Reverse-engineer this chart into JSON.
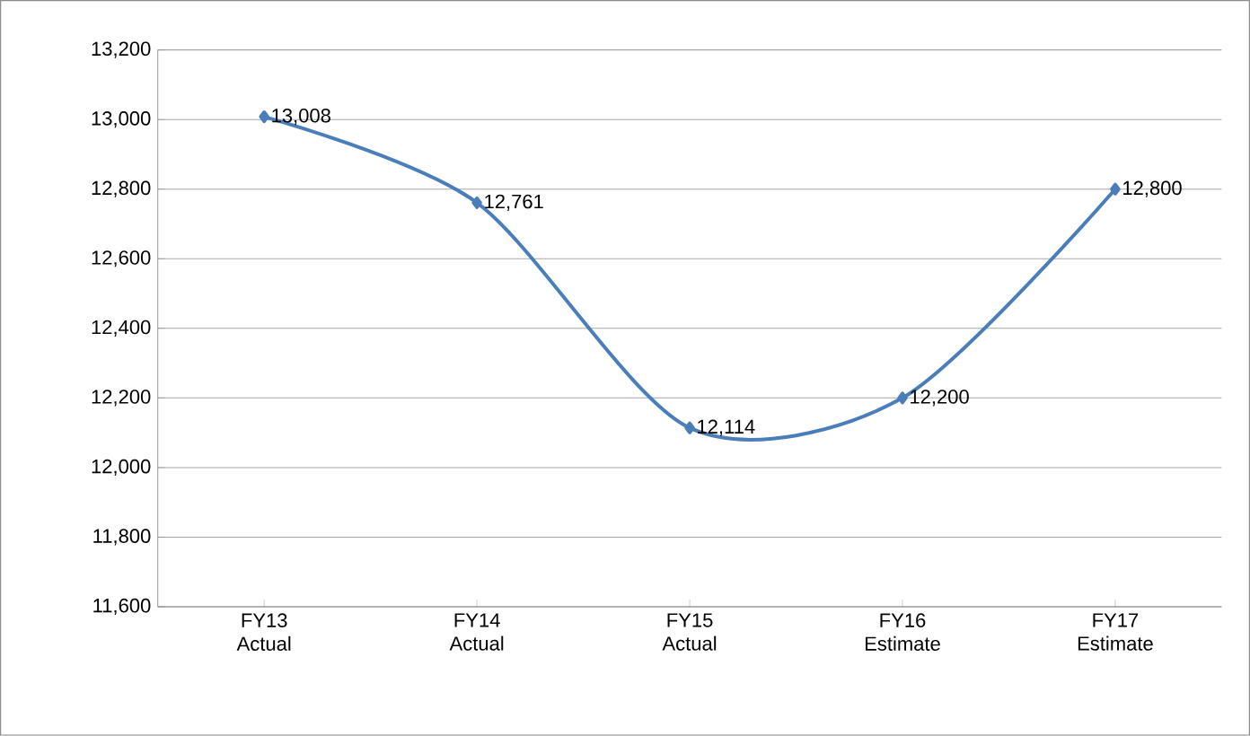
{
  "chart_data": {
    "type": "line",
    "categories": [
      "FY13 Actual",
      "FY14 Actual",
      "FY15 Actual",
      "FY16 Estimate",
      "FY17 Estimate"
    ],
    "values": [
      13008,
      12761,
      12114,
      12200,
      12800
    ],
    "value_labels": [
      "13,008",
      "12,761",
      "12,114",
      "12,200",
      "12,800"
    ],
    "color": "#4a7ebb",
    "marker": "diamond",
    "grid": "y",
    "ylim": [
      11600,
      13200
    ],
    "yticks": [
      {
        "value": 11600,
        "label": "11,600"
      },
      {
        "value": 11800,
        "label": "11,800"
      },
      {
        "value": 12000,
        "label": "12,000"
      },
      {
        "value": 12200,
        "label": "12,200"
      },
      {
        "value": 12400,
        "label": "12,400"
      },
      {
        "value": 12600,
        "label": "12,600"
      },
      {
        "value": 12800,
        "label": "12,800"
      },
      {
        "value": 13000,
        "label": "13,000"
      },
      {
        "value": 13200,
        "label": "13,200"
      }
    ]
  }
}
